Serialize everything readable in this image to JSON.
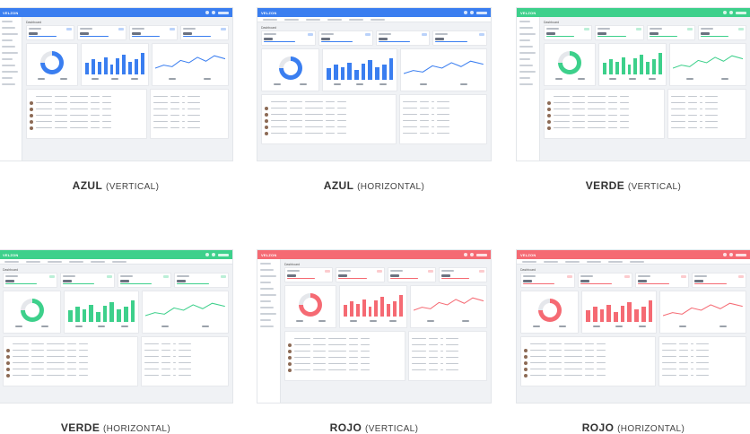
{
  "colors": {
    "azul": "#3a7ef0",
    "verde": "#3dd08b",
    "rojo": "#f56a73"
  },
  "items": [
    {
      "name": "AZUL",
      "layout": "(VERTICAL)",
      "color": "#3a7ef0",
      "orientation": "vertical"
    },
    {
      "name": "AZUL",
      "layout": "(HORIZONTAL)",
      "color": "#3a7ef0",
      "orientation": "horizontal"
    },
    {
      "name": "VERDE",
      "layout": "(VERTICAL)",
      "color": "#3dd08b",
      "orientation": "vertical"
    },
    {
      "name": "VERDE",
      "layout": "(HORIZONTAL)",
      "color": "#3dd08b",
      "orientation": "horizontal"
    },
    {
      "name": "ROJO",
      "layout": "(VERTICAL)",
      "color": "#f56a73",
      "orientation": "vertical"
    },
    {
      "name": "ROJO",
      "layout": "(HORIZONTAL)",
      "color": "#f56a73",
      "orientation": "horizontal"
    }
  ],
  "dashboard": {
    "brand": "VELZON",
    "page_title": "Dashboard",
    "stats": [
      "$17.21",
      "$5975.94",
      "$784.62",
      "119,187"
    ],
    "donut_label": "Apple Company"
  }
}
